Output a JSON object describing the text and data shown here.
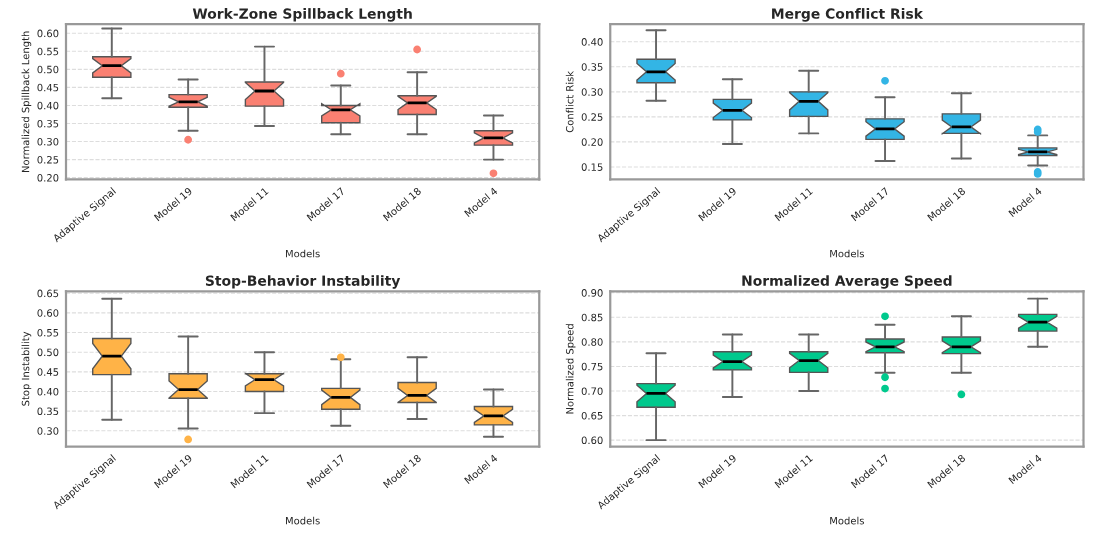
{
  "chart_data": [
    {
      "type": "box",
      "title": "Work-Zone Spillback Length",
      "xlabel": "Models",
      "ylabel": "Normalized Spillback Length",
      "categories": [
        "Adaptive Signal",
        "Model 19",
        "Model 11",
        "Model 17",
        "Model 18",
        "Model 4"
      ],
      "color": "#fa8072",
      "ylim": [
        0.195,
        0.625
      ],
      "yticks": [
        {
          "value": 0.2,
          "label": "0.20"
        },
        {
          "value": 0.25,
          "label": "0.25"
        },
        {
          "value": 0.3,
          "label": "0.30"
        },
        {
          "value": 0.35,
          "label": "0.35"
        },
        {
          "value": 0.4,
          "label": "0.40"
        },
        {
          "value": 0.45,
          "label": "0.45"
        },
        {
          "value": 0.5,
          "label": "0.50"
        },
        {
          "value": 0.55,
          "label": "0.55"
        },
        {
          "value": 0.6,
          "label": "0.60"
        }
      ],
      "grid": "y",
      "boxes": [
        {
          "low": 0.42,
          "q1": 0.478,
          "median": 0.51,
          "q3": 0.535,
          "high": 0.613
        },
        {
          "low": 0.33,
          "q1": 0.395,
          "median": 0.41,
          "q3": 0.43,
          "high": 0.472,
          "outliers": [
            0.305
          ]
        },
        {
          "low": 0.343,
          "q1": 0.398,
          "median": 0.44,
          "q3": 0.465,
          "high": 0.563
        },
        {
          "low": 0.32,
          "q1": 0.352,
          "median": 0.388,
          "q3": 0.4,
          "high": 0.455,
          "outliers": [
            0.488
          ]
        },
        {
          "low": 0.32,
          "q1": 0.375,
          "median": 0.407,
          "q3": 0.427,
          "high": 0.492,
          "outliers": [
            0.555
          ]
        },
        {
          "low": 0.25,
          "q1": 0.29,
          "median": 0.31,
          "q3": 0.33,
          "high": 0.372,
          "outliers": [
            0.212
          ]
        }
      ]
    },
    {
      "type": "box",
      "title": "Merge Conflict Risk",
      "xlabel": "Models",
      "ylabel": "Conflict Risk",
      "categories": [
        "Adaptive Signal",
        "Model 19",
        "Model 11",
        "Model 17",
        "Model 18",
        "Model 4"
      ],
      "color": "#33b5e5",
      "ylim": [
        0.125,
        0.435
      ],
      "yticks": [
        {
          "value": 0.15,
          "label": "0.15"
        },
        {
          "value": 0.2,
          "label": "0.20"
        },
        {
          "value": 0.25,
          "label": "0.25"
        },
        {
          "value": 0.3,
          "label": "0.30"
        },
        {
          "value": 0.35,
          "label": "0.35"
        },
        {
          "value": 0.4,
          "label": "0.40"
        }
      ],
      "grid": "y",
      "boxes": [
        {
          "low": 0.282,
          "q1": 0.318,
          "median": 0.34,
          "q3": 0.365,
          "high": 0.423
        },
        {
          "low": 0.196,
          "q1": 0.244,
          "median": 0.263,
          "q3": 0.285,
          "high": 0.325
        },
        {
          "low": 0.217,
          "q1": 0.251,
          "median": 0.281,
          "q3": 0.3,
          "high": 0.342
        },
        {
          "low": 0.162,
          "q1": 0.205,
          "median": 0.226,
          "q3": 0.246,
          "high": 0.289,
          "outliers": [
            0.322
          ]
        },
        {
          "low": 0.167,
          "q1": 0.217,
          "median": 0.23,
          "q3": 0.256,
          "high": 0.297
        },
        {
          "low": 0.153,
          "q1": 0.173,
          "median": 0.18,
          "q3": 0.188,
          "high": 0.213,
          "outliers": [
            0.225,
            0.22,
            0.14,
            0.136
          ]
        }
      ]
    },
    {
      "type": "box",
      "title": "Stop-Behavior Instability",
      "xlabel": "Models",
      "ylabel": "Stop Instability",
      "categories": [
        "Adaptive Signal",
        "Model 19",
        "Model 11",
        "Model 17",
        "Model 18",
        "Model 4"
      ],
      "color": "#ffb347",
      "ylim": [
        0.26,
        0.655
      ],
      "yticks": [
        {
          "value": 0.3,
          "label": "0.30"
        },
        {
          "value": 0.35,
          "label": "0.35"
        },
        {
          "value": 0.4,
          "label": "0.40"
        },
        {
          "value": 0.45,
          "label": "0.45"
        },
        {
          "value": 0.5,
          "label": "0.50"
        },
        {
          "value": 0.55,
          "label": "0.55"
        },
        {
          "value": 0.6,
          "label": "0.60"
        },
        {
          "value": 0.65,
          "label": "0.65"
        }
      ],
      "grid": "y",
      "boxes": [
        {
          "low": 0.328,
          "q1": 0.443,
          "median": 0.49,
          "q3": 0.535,
          "high": 0.636
        },
        {
          "low": 0.306,
          "q1": 0.383,
          "median": 0.405,
          "q3": 0.445,
          "high": 0.54,
          "outliers": [
            0.278
          ]
        },
        {
          "low": 0.345,
          "q1": 0.4,
          "median": 0.43,
          "q3": 0.445,
          "high": 0.5
        },
        {
          "low": 0.313,
          "q1": 0.355,
          "median": 0.385,
          "q3": 0.408,
          "high": 0.482,
          "outliers": [
            0.487
          ]
        },
        {
          "low": 0.33,
          "q1": 0.372,
          "median": 0.39,
          "q3": 0.423,
          "high": 0.487
        },
        {
          "low": 0.285,
          "q1": 0.315,
          "median": 0.338,
          "q3": 0.362,
          "high": 0.405
        }
      ]
    },
    {
      "type": "box",
      "title": "Normalized Average Speed",
      "xlabel": "Models",
      "ylabel": "Normalized Speed",
      "categories": [
        "Adaptive Signal",
        "Model 19",
        "Model 11",
        "Model 17",
        "Model 18",
        "Model 4"
      ],
      "color": "#00c98d",
      "ylim": [
        0.587,
        0.903
      ],
      "yticks": [
        {
          "value": 0.6,
          "label": "0.60"
        },
        {
          "value": 0.65,
          "label": "0.65"
        },
        {
          "value": 0.7,
          "label": "0.70"
        },
        {
          "value": 0.75,
          "label": "0.75"
        },
        {
          "value": 0.8,
          "label": "0.80"
        },
        {
          "value": 0.85,
          "label": "0.85"
        },
        {
          "value": 0.9,
          "label": "0.90"
        }
      ],
      "grid": "y",
      "boxes": [
        {
          "low": 0.6,
          "q1": 0.667,
          "median": 0.695,
          "q3": 0.715,
          "high": 0.777
        },
        {
          "low": 0.688,
          "q1": 0.743,
          "median": 0.76,
          "q3": 0.78,
          "high": 0.815
        },
        {
          "low": 0.7,
          "q1": 0.738,
          "median": 0.762,
          "q3": 0.78,
          "high": 0.815
        },
        {
          "low": 0.737,
          "q1": 0.778,
          "median": 0.79,
          "q3": 0.806,
          "high": 0.835,
          "outliers": [
            0.852,
            0.728,
            0.705
          ]
        },
        {
          "low": 0.737,
          "q1": 0.776,
          "median": 0.79,
          "q3": 0.81,
          "high": 0.852,
          "outliers": [
            0.693
          ]
        },
        {
          "low": 0.79,
          "q1": 0.822,
          "median": 0.84,
          "q3": 0.856,
          "high": 0.888
        }
      ]
    }
  ]
}
